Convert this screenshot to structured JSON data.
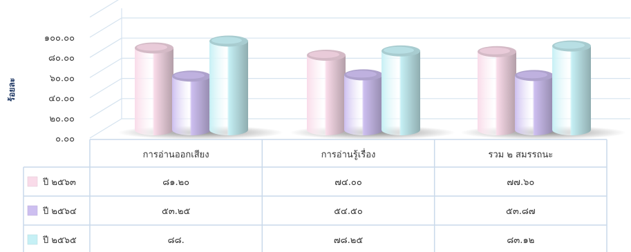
{
  "chart_data": {
    "type": "bar",
    "ylabel": "ร้อยละ",
    "ylim": [
      0,
      100
    ],
    "yticks": [
      "๐.๐๐",
      "๒๐.๐๐",
      "๔๐.๐๐",
      "๖๐.๐๐",
      "๘๐.๐๐",
      "๑๐๐.๐๐"
    ],
    "categories": [
      "การอ่านออกเสียง",
      "การอ่านรู้เรื่อง",
      "รวม ๒ สมรรถนะ"
    ],
    "grid": true,
    "legend": "table-left",
    "series": [
      {
        "name": "ปี ๒๕๖๓",
        "values": [
          81.2,
          74.0,
          77.6
        ],
        "labels": [
          "๘๑.๒๐",
          "๗๔.๐๐",
          "๗๗.๖๐"
        ],
        "color": "#f9dbe9"
      },
      {
        "name": "ปี ๒๕๖๔",
        "values": [
          53.25,
          54.5,
          53.87
        ],
        "labels": [
          "๕๓.๒๕",
          "๕๔.๕๐",
          "๕๓.๘๗"
        ],
        "color": "#cdbff0"
      },
      {
        "name": "ปี ๒๕๖๕",
        "values": [
          88.0,
          78.25,
          83.12
        ],
        "labels": [
          "๘๘.",
          "๗๘.๒๕",
          "๘๓.๑๒"
        ],
        "color": "#c6f0f5"
      }
    ]
  }
}
